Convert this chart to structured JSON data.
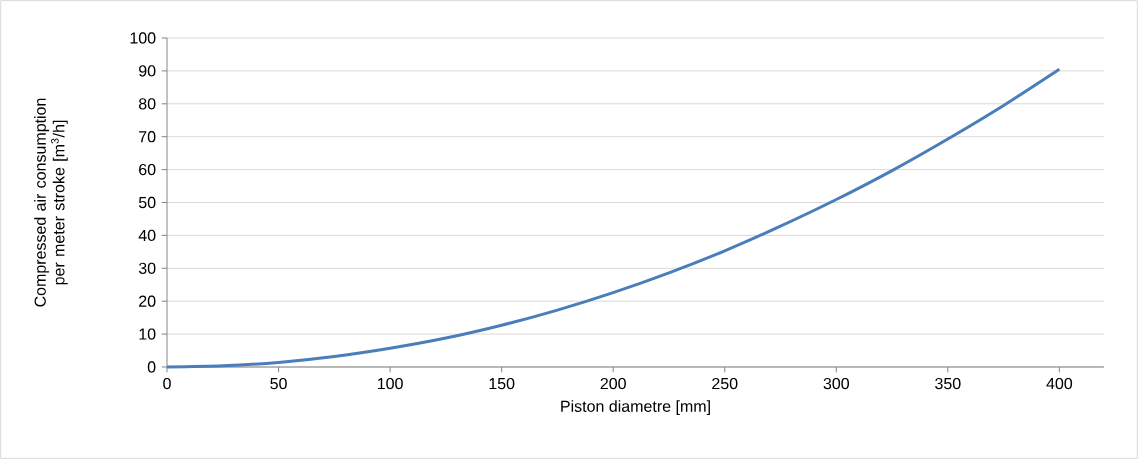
{
  "chart_data": {
    "type": "line",
    "xlabel": "Piston diametre [mm]",
    "ylabel": "Compressed air consumption per meter stroke [m$^{3}$/h]",
    "x": [
      0,
      25,
      50,
      75,
      100,
      125,
      150,
      175,
      200,
      225,
      250,
      275,
      300,
      325,
      350,
      375,
      400
    ],
    "series": [
      {
        "color": "#4a7ebb",
        "values": [
          0,
          0.35,
          1.4,
          3.2,
          5.7,
          8.8,
          12.7,
          17.3,
          22.6,
          28.6,
          35.3,
          42.8,
          50.9,
          59.7,
          69.3,
          79.5,
          90.5
        ]
      }
    ],
    "xlim": [
      0,
      420
    ],
    "ylim": [
      0,
      100
    ],
    "xticks": [
      0,
      50,
      100,
      150,
      200,
      250,
      300,
      350,
      400
    ],
    "yticks": [
      0,
      10,
      20,
      30,
      40,
      50,
      60,
      70,
      80,
      90,
      100
    ],
    "grid": "y"
  }
}
